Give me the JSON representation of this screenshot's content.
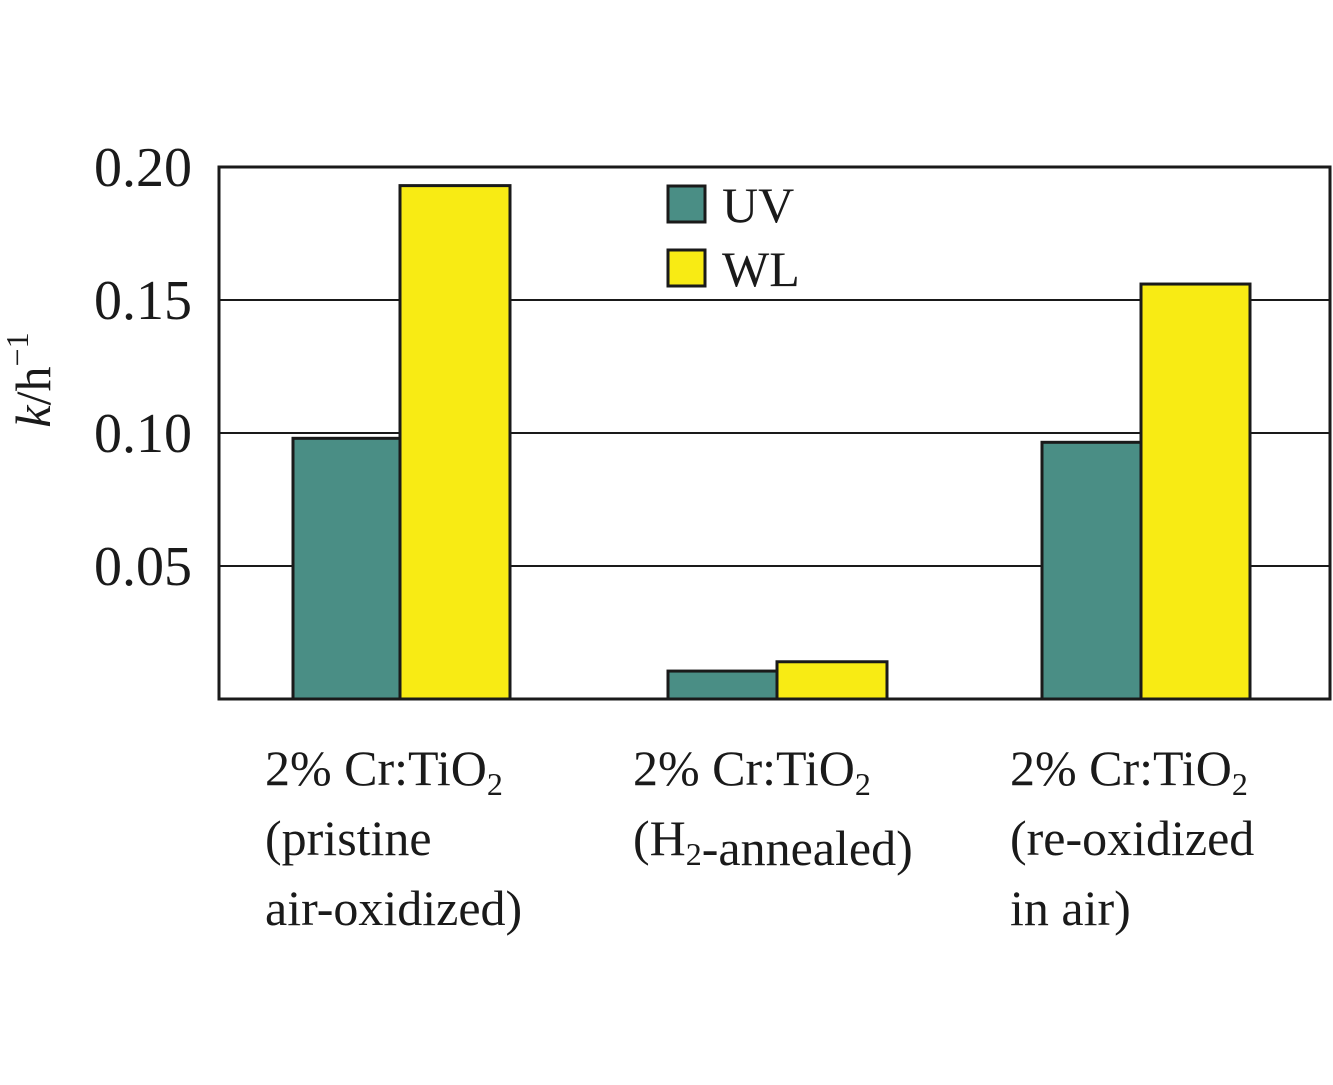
{
  "chart_data": {
    "type": "bar",
    "title": "",
    "xlabel": "",
    "ylabel": "k/h⁻¹",
    "ylabel_parts": {
      "var": "k",
      "unit": "/h",
      "exp": "−1"
    },
    "ylim": [
      0,
      0.2
    ],
    "yticks": [
      0.05,
      0.1,
      0.15,
      0.2
    ],
    "ytick_labels": [
      "0.05",
      "0.10",
      "0.15",
      "0.20"
    ],
    "grid": true,
    "legend_position": "top-center",
    "categories": [
      [
        "2% Cr:TiO₂",
        "(pristine",
        "air-oxidized)"
      ],
      [
        "2% Cr:TiO₂",
        "(H₂-annealed)"
      ],
      [
        "2% Cr:TiO₂",
        "(re-oxidized",
        " in air)"
      ]
    ],
    "series": [
      {
        "name": "UV",
        "color": "#4a8e85",
        "values": [
          0.098,
          0.0105,
          0.0965
        ]
      },
      {
        "name": "WL",
        "color": "#f8eb14",
        "values": [
          0.193,
          0.014,
          0.156
        ]
      }
    ]
  }
}
